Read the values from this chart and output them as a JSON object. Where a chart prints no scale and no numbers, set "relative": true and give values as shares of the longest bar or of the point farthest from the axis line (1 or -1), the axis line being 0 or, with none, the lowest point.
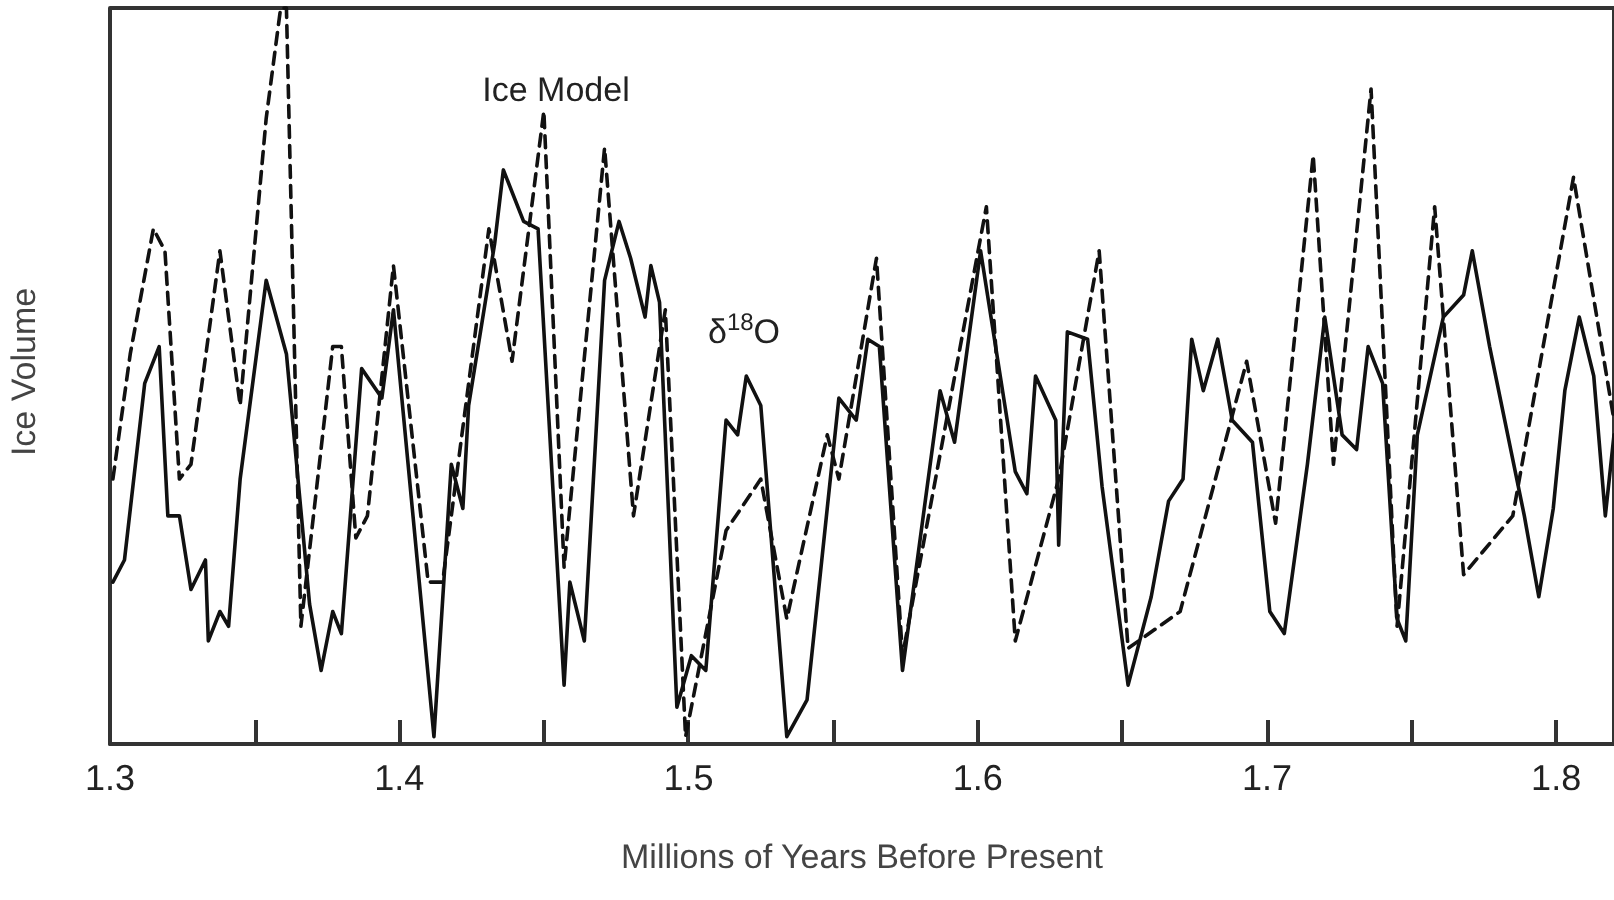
{
  "chart_data": {
    "type": "line",
    "relative": true,
    "xlabel": "Millions of Years Before Present",
    "ylabel": "Ice Volume",
    "xlim": [
      1.3,
      1.82
    ],
    "xticks": [
      1.3,
      {
        "value": 1.35,
        "label": null
      },
      1.4,
      {
        "value": 1.45,
        "label": null
      },
      1.5,
      {
        "value": 1.55,
        "label": null
      },
      1.6,
      {
        "value": 1.65,
        "label": null
      },
      1.7,
      {
        "value": 1.75,
        "label": null
      },
      1.8
    ],
    "grid": false,
    "marker": "none",
    "annotations": [
      "Ice Model",
      "δ$^{18}$O"
    ],
    "series": [
      {
        "color": "#111111",
        "line_style": "dashed",
        "x": [
          1.301,
          1.307,
          1.315,
          1.319,
          1.324,
          1.328,
          1.338,
          1.345,
          1.354,
          1.359,
          1.361,
          1.366,
          1.377,
          1.38,
          1.385,
          1.389,
          1.398,
          1.41,
          1.415,
          1.431,
          1.439,
          1.45,
          1.457,
          1.471,
          1.481,
          1.492,
          1.499,
          1.513,
          1.525,
          1.534,
          1.548,
          1.552,
          1.565,
          1.574,
          1.603,
          1.613,
          1.628,
          1.642,
          1.652,
          1.67,
          1.693,
          1.703,
          1.716,
          1.723,
          1.736,
          1.745,
          1.758,
          1.768,
          1.785,
          1.806,
          1.82
        ],
        "values": [
          0.36,
          0.53,
          0.7,
          0.67,
          0.36,
          0.38,
          0.67,
          0.46,
          0.85,
          1.0,
          1.0,
          0.16,
          0.54,
          0.54,
          0.28,
          0.31,
          0.65,
          0.22,
          0.22,
          0.7,
          0.52,
          0.86,
          0.24,
          0.81,
          0.31,
          0.59,
          0.01,
          0.29,
          0.36,
          0.17,
          0.42,
          0.36,
          0.66,
          0.12,
          0.73,
          0.14,
          0.36,
          0.67,
          0.13,
          0.18,
          0.52,
          0.3,
          0.8,
          0.38,
          0.89,
          0.16,
          0.73,
          0.23,
          0.31,
          0.77,
          0.44
        ]
      },
      {
        "color": "#111111",
        "line_style": "solid",
        "x": [
          1.301,
          1.305,
          1.312,
          1.317,
          1.32,
          1.324,
          1.328,
          1.333,
          1.334,
          1.338,
          1.341,
          1.345,
          1.354,
          1.361,
          1.369,
          1.373,
          1.377,
          1.38,
          1.387,
          1.394,
          1.398,
          1.412,
          1.418,
          1.422,
          1.424,
          1.433,
          1.436,
          1.443,
          1.448,
          1.457,
          1.459,
          1.464,
          1.471,
          1.476,
          1.48,
          1.485,
          1.487,
          1.49,
          1.496,
          1.501,
          1.506,
          1.513,
          1.517,
          1.52,
          1.525,
          1.534,
          1.541,
          1.552,
          1.558,
          1.562,
          1.566,
          1.574,
          1.587,
          1.592,
          1.601,
          1.613,
          1.617,
          1.62,
          1.627,
          1.628,
          1.631,
          1.638,
          1.643,
          1.652,
          1.66,
          1.666,
          1.671,
          1.674,
          1.678,
          1.683,
          1.688,
          1.695,
          1.701,
          1.706,
          1.714,
          1.72,
          1.726,
          1.731,
          1.735,
          1.74,
          1.745,
          1.748,
          1.752,
          1.761,
          1.768,
          1.771,
          1.777,
          1.789,
          1.794,
          1.799,
          1.803,
          1.808,
          1.813,
          1.817,
          1.82
        ],
        "values": [
          0.22,
          0.25,
          0.49,
          0.54,
          0.31,
          0.31,
          0.21,
          0.25,
          0.14,
          0.18,
          0.16,
          0.36,
          0.63,
          0.53,
          0.19,
          0.1,
          0.18,
          0.15,
          0.51,
          0.47,
          0.59,
          0.01,
          0.38,
          0.32,
          0.46,
          0.68,
          0.78,
          0.71,
          0.7,
          0.08,
          0.22,
          0.14,
          0.63,
          0.71,
          0.66,
          0.58,
          0.65,
          0.6,
          0.05,
          0.12,
          0.1,
          0.44,
          0.42,
          0.5,
          0.46,
          0.01,
          0.06,
          0.47,
          0.44,
          0.55,
          0.54,
          0.1,
          0.48,
          0.41,
          0.67,
          0.37,
          0.34,
          0.5,
          0.44,
          0.27,
          0.56,
          0.55,
          0.35,
          0.08,
          0.2,
          0.33,
          0.36,
          0.55,
          0.48,
          0.55,
          0.44,
          0.41,
          0.18,
          0.15,
          0.38,
          0.58,
          0.42,
          0.4,
          0.54,
          0.49,
          0.17,
          0.14,
          0.42,
          0.58,
          0.61,
          0.67,
          0.54,
          0.31,
          0.2,
          0.32,
          0.48,
          0.58,
          0.5,
          0.31,
          0.42
        ]
      }
    ]
  }
}
